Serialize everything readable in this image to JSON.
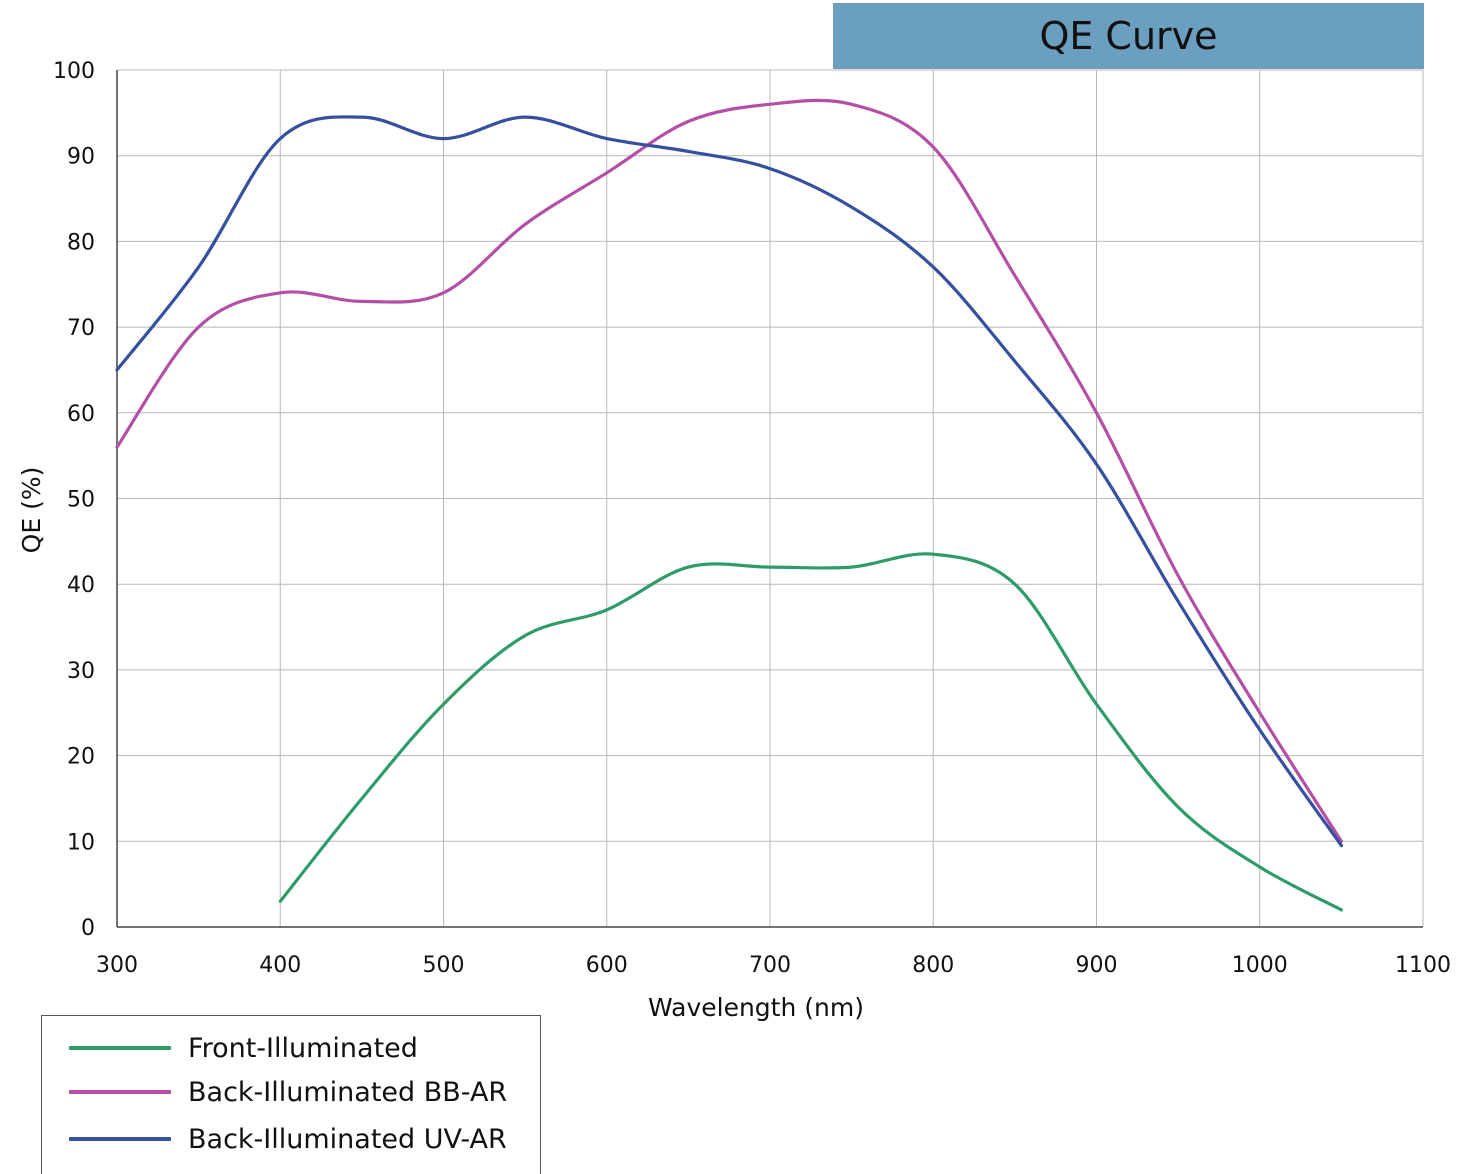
{
  "title": "QE Curve",
  "colors": {
    "title_bg": "#6b9fbf",
    "grid": "#b8b8b8",
    "axis": "#444444",
    "front": "#2e9b6a",
    "bbar": "#b34fa6",
    "uvar": "#34509f"
  },
  "chart_data": {
    "type": "line",
    "title": "QE Curve",
    "xlabel": "Wavelength (nm)",
    "ylabel": "QE (%)",
    "xlim": [
      300,
      1100
    ],
    "ylim": [
      0,
      100
    ],
    "xticks": [
      300,
      400,
      500,
      600,
      700,
      800,
      900,
      1000,
      1100
    ],
    "yticks": [
      0,
      10,
      20,
      30,
      40,
      50,
      60,
      70,
      80,
      90,
      100
    ],
    "grid": true,
    "legend_position": "bottom-left",
    "series": [
      {
        "name": "Front-Illuminated",
        "color": "#2e9b6a",
        "x": [
          400,
          450,
          500,
          550,
          600,
          650,
          700,
          750,
          800,
          850,
          900,
          950,
          1000,
          1050
        ],
        "y": [
          3,
          15,
          26,
          34,
          37,
          42,
          42,
          42,
          43.5,
          40,
          26,
          14,
          7,
          2
        ]
      },
      {
        "name": "Back-Illuminated BB-AR",
        "color": "#b34fa6",
        "x": [
          300,
          350,
          400,
          450,
          500,
          550,
          600,
          650,
          700,
          750,
          800,
          850,
          900,
          950,
          1000,
          1050
        ],
        "y": [
          56,
          70,
          74,
          73,
          74,
          82,
          88,
          94,
          96,
          96,
          91,
          76,
          60,
          41,
          25,
          10
        ]
      },
      {
        "name": "Back-Illuminated UV-AR",
        "color": "#34509f",
        "x": [
          300,
          350,
          400,
          450,
          500,
          550,
          600,
          650,
          700,
          750,
          800,
          850,
          900,
          950,
          1000,
          1050
        ],
        "y": [
          65,
          77,
          92,
          94.5,
          92,
          94.5,
          92,
          90.5,
          88.5,
          84,
          77,
          66,
          54,
          38,
          23,
          9.5
        ]
      }
    ]
  }
}
